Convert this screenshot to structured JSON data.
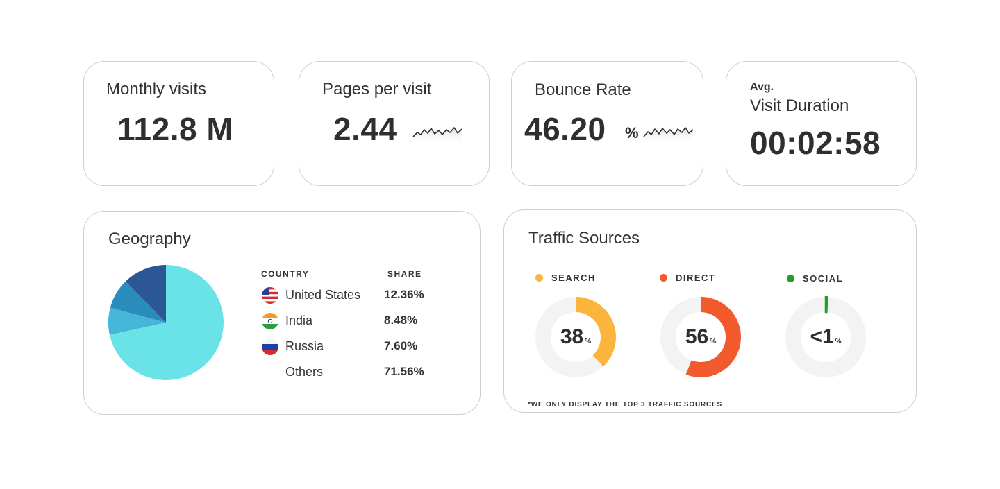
{
  "stats": {
    "monthly_visits": {
      "title": "Monthly visits",
      "value": "112.8 M"
    },
    "pages_per_visit": {
      "title": "Pages per visit",
      "value": "2.44"
    },
    "bounce_rate": {
      "title": "Bounce Rate",
      "value": "46.20",
      "unit": "%"
    },
    "visit_duration": {
      "title_small": "Avg.",
      "title": "Visit Duration",
      "value": "00:02:58"
    }
  },
  "geography": {
    "title": "Geography",
    "col_country": "COUNTRY",
    "col_share": "SHARE",
    "rows": [
      {
        "country": "United States",
        "share": "12.36%",
        "share_value": 12.36,
        "flag": "us-flag-icon",
        "color": "#2b5797"
      },
      {
        "country": "India",
        "share": "8.48%",
        "share_value": 8.48,
        "flag": "india-flag-icon",
        "color": "#2a8bbd"
      },
      {
        "country": "Russia",
        "share": "7.60%",
        "share_value": 7.6,
        "flag": "russia-flag-icon",
        "color": "#45b5d8"
      },
      {
        "country": "Others",
        "share": "71.56%",
        "share_value": 71.56,
        "flag": "",
        "color": "#6ae3e8"
      }
    ]
  },
  "traffic": {
    "title": "Traffic Sources",
    "sources": [
      {
        "label": "SEARCH",
        "value": "38",
        "fraction": 0.38,
        "color": "#fbb53c"
      },
      {
        "label": "DIRECT",
        "value": "56",
        "fraction": 0.56,
        "color": "#f25a2e"
      },
      {
        "label": "SOCIAL",
        "value": "<1",
        "fraction": 0.006,
        "color": "#1aa52a"
      }
    ],
    "pct_symbol": "%",
    "footnote": "*WE ONLY DISPLAY THE TOP 3 TRAFFIC SOURCES"
  },
  "colors": {
    "track": "#f3f3f3",
    "border": "#cfcfcf"
  }
}
